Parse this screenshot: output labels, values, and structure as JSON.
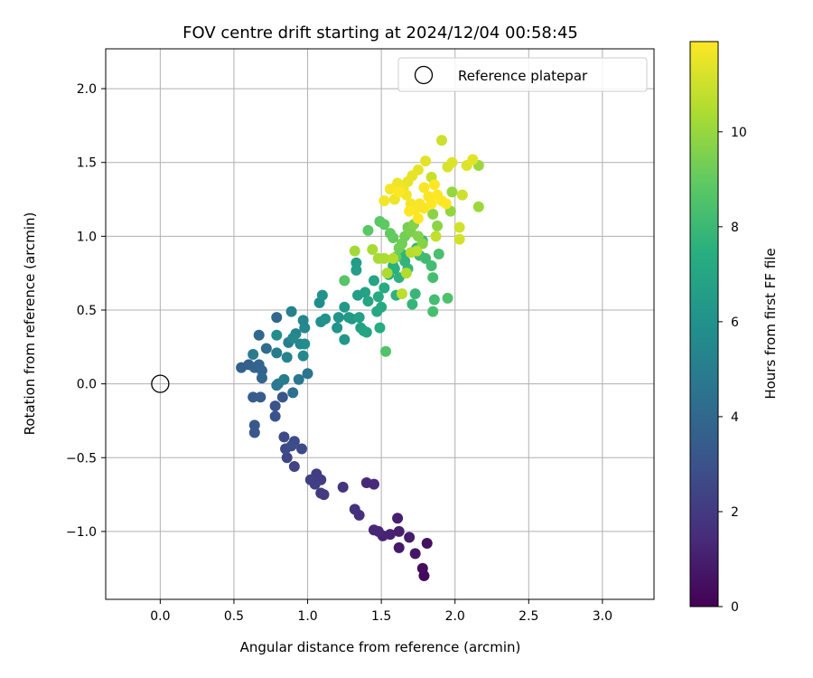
{
  "chart_data": {
    "type": "scatter",
    "title": "FOV centre drift starting at 2024/12/04 00:58:45",
    "xlabel": "Angular distance from reference (arcmin)",
    "ylabel": "Rotation from reference (arcmin)",
    "xlim": [
      -0.37,
      3.35
    ],
    "ylim": [
      -1.46,
      2.27
    ],
    "xticks": [
      "0.0",
      "0.5",
      "1.0",
      "1.5",
      "2.0",
      "2.5",
      "3.0"
    ],
    "yticks": [
      "−1.0",
      "−0.5",
      "0.0",
      "0.5",
      "1.0",
      "1.5",
      "2.0"
    ],
    "grid": true,
    "legend": {
      "position": "top-right",
      "entries": [
        "Reference platepar"
      ]
    },
    "reference": {
      "x": 0.0,
      "y": 0.0
    },
    "colorbar": {
      "label": "Hours from first FF file",
      "range": [
        0,
        11.9
      ],
      "ticks": [
        "0",
        "2",
        "4",
        "6",
        "8",
        "10"
      ],
      "colormap": "viridis"
    },
    "point_color_variable": "hours",
    "points": [
      [
        1.79,
        -1.3,
        0.3
      ],
      [
        1.78,
        -1.25,
        0.4
      ],
      [
        1.81,
        -1.08,
        0.5
      ],
      [
        1.73,
        -1.15,
        0.7
      ],
      [
        1.62,
        -1.11,
        0.8
      ],
      [
        1.69,
        -1.04,
        0.9
      ],
      [
        1.62,
        -1.0,
        1.0
      ],
      [
        1.61,
        -0.91,
        1.0
      ],
      [
        1.56,
        -1.02,
        1.1
      ],
      [
        1.51,
        -1.03,
        1.2
      ],
      [
        1.48,
        -1.0,
        1.3
      ],
      [
        1.45,
        -0.99,
        1.3
      ],
      [
        1.45,
        -0.68,
        1.4
      ],
      [
        1.4,
        -0.67,
        1.4
      ],
      [
        1.35,
        -0.89,
        1.6
      ],
      [
        1.32,
        -0.85,
        1.7
      ],
      [
        1.24,
        -0.7,
        1.8
      ],
      [
        1.11,
        -0.75,
        2.0
      ],
      [
        1.09,
        -0.74,
        2.0
      ],
      [
        1.09,
        -0.65,
        2.1
      ],
      [
        1.06,
        -0.61,
        2.1
      ],
      [
        1.02,
        -0.65,
        2.2
      ],
      [
        1.05,
        -0.68,
        2.2
      ],
      [
        0.91,
        -0.56,
        2.4
      ],
      [
        0.86,
        -0.5,
        2.5
      ],
      [
        0.85,
        -0.44,
        2.6
      ],
      [
        0.84,
        -0.36,
        2.6
      ],
      [
        0.91,
        -0.39,
        2.7
      ],
      [
        0.96,
        -0.44,
        2.7
      ],
      [
        0.89,
        -0.42,
        2.8
      ],
      [
        0.78,
        -0.15,
        3.0
      ],
      [
        0.78,
        -0.22,
        3.0
      ],
      [
        0.83,
        -0.09,
        3.1
      ],
      [
        0.64,
        -0.28,
        3.2
      ],
      [
        0.64,
        -0.33,
        3.2
      ],
      [
        0.63,
        -0.09,
        3.4
      ],
      [
        0.68,
        -0.09,
        3.5
      ],
      [
        0.55,
        0.11,
        3.6
      ],
      [
        0.6,
        0.13,
        3.6
      ],
      [
        0.64,
        0.11,
        3.7
      ],
      [
        0.67,
        0.13,
        3.8
      ],
      [
        0.69,
        0.09,
        3.8
      ],
      [
        0.69,
        0.04,
        3.9
      ],
      [
        0.67,
        0.33,
        4.0
      ],
      [
        0.79,
        0.45,
        4.0
      ],
      [
        0.72,
        0.24,
        4.2
      ],
      [
        0.9,
        -0.06,
        4.4
      ],
      [
        0.8,
        0.0,
        4.5
      ],
      [
        1.0,
        0.07,
        4.6
      ],
      [
        0.94,
        0.03,
        4.7
      ],
      [
        0.79,
        -0.01,
        4.8
      ],
      [
        0.63,
        0.2,
        4.9
      ],
      [
        0.79,
        0.21,
        5.0
      ],
      [
        0.84,
        0.03,
        5.0
      ],
      [
        0.87,
        0.28,
        5.1
      ],
      [
        0.89,
        0.49,
        5.2
      ],
      [
        0.86,
        0.18,
        5.3
      ],
      [
        0.92,
        0.34,
        5.3
      ],
      [
        0.97,
        0.43,
        5.4
      ],
      [
        0.95,
        0.27,
        5.4
      ],
      [
        0.98,
        0.38,
        5.5
      ],
      [
        0.97,
        0.19,
        5.5
      ],
      [
        0.9,
        0.31,
        5.6
      ],
      [
        0.98,
        0.27,
        5.7
      ],
      [
        0.79,
        0.33,
        5.8
      ],
      [
        1.08,
        0.55,
        5.8
      ],
      [
        1.09,
        0.42,
        5.9
      ],
      [
        1.1,
        0.6,
        6.0
      ],
      [
        1.12,
        0.44,
        6.0
      ],
      [
        1.2,
        0.38,
        6.1
      ],
      [
        1.21,
        0.45,
        6.2
      ],
      [
        1.25,
        0.3,
        6.2
      ],
      [
        1.25,
        0.52,
        6.3
      ],
      [
        1.28,
        0.45,
        6.4
      ],
      [
        1.3,
        0.44,
        6.4
      ],
      [
        1.33,
        0.82,
        6.5
      ],
      [
        1.33,
        0.77,
        6.6
      ],
      [
        1.34,
        0.6,
        6.6
      ],
      [
        1.35,
        0.45,
        6.7
      ],
      [
        1.36,
        0.38,
        6.7
      ],
      [
        1.38,
        0.36,
        6.8
      ],
      [
        1.39,
        0.62,
        6.8
      ],
      [
        1.4,
        0.35,
        6.9
      ],
      [
        1.41,
        0.56,
        7.0
      ],
      [
        1.45,
        0.7,
        7.0
      ],
      [
        1.47,
        0.49,
        7.1
      ],
      [
        1.48,
        0.59,
        7.2
      ],
      [
        1.5,
        0.52,
        7.2
      ],
      [
        1.49,
        0.38,
        7.3
      ],
      [
        1.52,
        0.65,
        7.3
      ],
      [
        1.55,
        0.74,
        7.4
      ],
      [
        1.58,
        0.8,
        7.5
      ],
      [
        1.59,
        0.78,
        7.5
      ],
      [
        1.6,
        0.6,
        7.6
      ],
      [
        1.62,
        0.72,
        7.6
      ],
      [
        1.64,
        0.88,
        7.7
      ],
      [
        1.66,
        0.83,
        7.7
      ],
      [
        1.68,
        0.78,
        7.8
      ],
      [
        1.71,
        0.54,
        7.8
      ],
      [
        1.73,
        0.61,
        7.9
      ],
      [
        1.74,
        0.92,
        7.9
      ],
      [
        1.76,
        0.87,
        8.0
      ],
      [
        1.78,
        0.97,
        8.0
      ],
      [
        1.8,
        0.85,
        8.1
      ],
      [
        1.84,
        0.8,
        8.2
      ],
      [
        1.86,
        0.57,
        8.2
      ],
      [
        1.85,
        0.49,
        8.3
      ],
      [
        1.85,
        0.72,
        8.3
      ],
      [
        1.89,
        0.88,
        8.4
      ],
      [
        1.95,
        0.58,
        8.5
      ],
      [
        1.53,
        0.22,
        8.6
      ],
      [
        1.25,
        0.7,
        8.7
      ],
      [
        1.41,
        1.04,
        8.8
      ],
      [
        1.49,
        1.1,
        8.8
      ],
      [
        1.52,
        1.08,
        8.9
      ],
      [
        1.56,
        1.02,
        9.0
      ],
      [
        1.58,
        0.99,
        9.0
      ],
      [
        1.6,
        0.86,
        9.1
      ],
      [
        1.62,
        0.92,
        9.2
      ],
      [
        1.64,
        0.95,
        9.3
      ],
      [
        1.66,
        1.0,
        9.3
      ],
      [
        1.68,
        1.06,
        9.4
      ],
      [
        1.7,
        1.03,
        9.5
      ],
      [
        1.72,
        1.08,
        9.6
      ],
      [
        1.75,
        1.0,
        9.6
      ],
      [
        1.78,
        0.95,
        9.7
      ],
      [
        1.85,
        1.15,
        9.8
      ],
      [
        1.88,
        1.07,
        9.8
      ],
      [
        1.97,
        1.17,
        9.9
      ],
      [
        1.98,
        1.3,
        10.0
      ],
      [
        2.16,
        1.48,
        10.1
      ],
      [
        2.16,
        1.2,
        10.1
      ],
      [
        1.32,
        0.9,
        10.2
      ],
      [
        1.44,
        0.91,
        10.3
      ],
      [
        1.48,
        0.85,
        10.3
      ],
      [
        1.52,
        0.85,
        10.4
      ],
      [
        1.54,
        0.75,
        10.4
      ],
      [
        1.58,
        0.85,
        10.5
      ],
      [
        1.67,
        0.75,
        10.5
      ],
      [
        1.7,
        0.89,
        10.6
      ],
      [
        1.74,
        0.9,
        10.7
      ],
      [
        1.64,
        0.61,
        10.7
      ],
      [
        1.87,
        1.0,
        10.8
      ],
      [
        1.84,
        1.4,
        10.9
      ],
      [
        1.91,
        1.65,
        11.0
      ],
      [
        2.05,
        1.28,
        11.0
      ],
      [
        2.03,
        1.06,
        11.1
      ],
      [
        2.03,
        0.98,
        11.1
      ],
      [
        1.95,
        1.47,
        11.2
      ],
      [
        1.98,
        1.5,
        11.3
      ],
      [
        2.08,
        1.48,
        11.3
      ],
      [
        2.12,
        1.52,
        11.4
      ],
      [
        1.8,
        1.51,
        11.4
      ],
      [
        1.75,
        1.45,
        11.5
      ],
      [
        1.71,
        1.41,
        11.5
      ],
      [
        1.68,
        1.37,
        11.5
      ],
      [
        1.65,
        1.33,
        11.6
      ],
      [
        1.61,
        1.36,
        11.6
      ],
      [
        1.59,
        1.25,
        11.6
      ],
      [
        1.52,
        1.24,
        11.7
      ],
      [
        1.67,
        1.28,
        11.7
      ],
      [
        1.7,
        1.22,
        11.7
      ],
      [
        1.73,
        1.18,
        11.8
      ],
      [
        1.76,
        1.22,
        11.8
      ],
      [
        1.79,
        1.19,
        11.8
      ],
      [
        1.82,
        1.27,
        11.8
      ],
      [
        1.84,
        1.22,
        11.9
      ],
      [
        1.88,
        1.28,
        11.9
      ],
      [
        1.91,
        1.24,
        11.9
      ],
      [
        1.94,
        1.22,
        11.9
      ],
      [
        1.69,
        1.17,
        11.9
      ],
      [
        1.75,
        1.12,
        11.9
      ],
      [
        1.62,
        1.3,
        11.9
      ],
      [
        1.86,
        1.35,
        11.9
      ],
      [
        1.56,
        1.32,
        11.8
      ],
      [
        1.79,
        1.33,
        11.8
      ]
    ]
  }
}
